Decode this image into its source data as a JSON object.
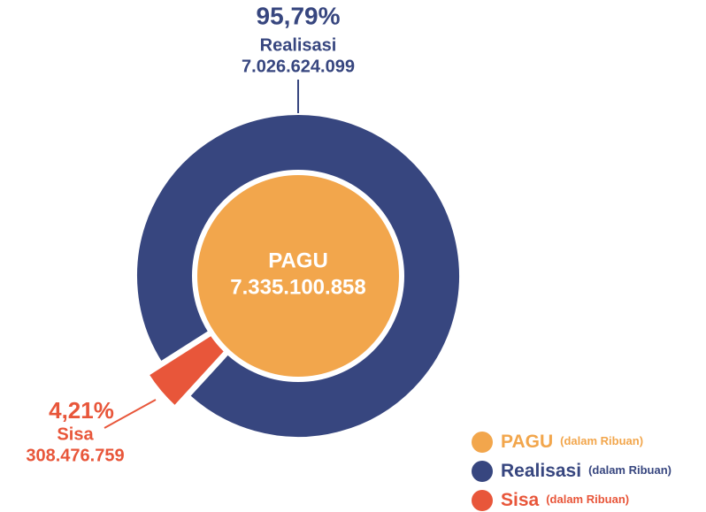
{
  "chart_data": {
    "type": "pie",
    "categories": [
      "Realisasi",
      "Sisa"
    ],
    "values": [
      95.79,
      4.21
    ],
    "value_labels": [
      "95,79%",
      "4,21%"
    ],
    "amounts": [
      7026624099,
      308476759
    ],
    "amount_labels": [
      "7.026.624.099",
      "308.476.759"
    ],
    "colors": [
      "#37467f",
      "#e8563a"
    ],
    "center": {
      "label": "PAGU",
      "amount": 7335100858,
      "amount_label": "7.335.100.858",
      "color": "#f2a64c"
    },
    "legend": [
      {
        "name": "PAGU",
        "note": "(dalam Ribuan)",
        "color": "#f2a64c"
      },
      {
        "name": "Realisasi",
        "note": "(dalam Ribuan)",
        "color": "#37467f"
      },
      {
        "name": "Sisa",
        "note": "(dalam Ribuan)",
        "color": "#e8563a"
      }
    ]
  }
}
